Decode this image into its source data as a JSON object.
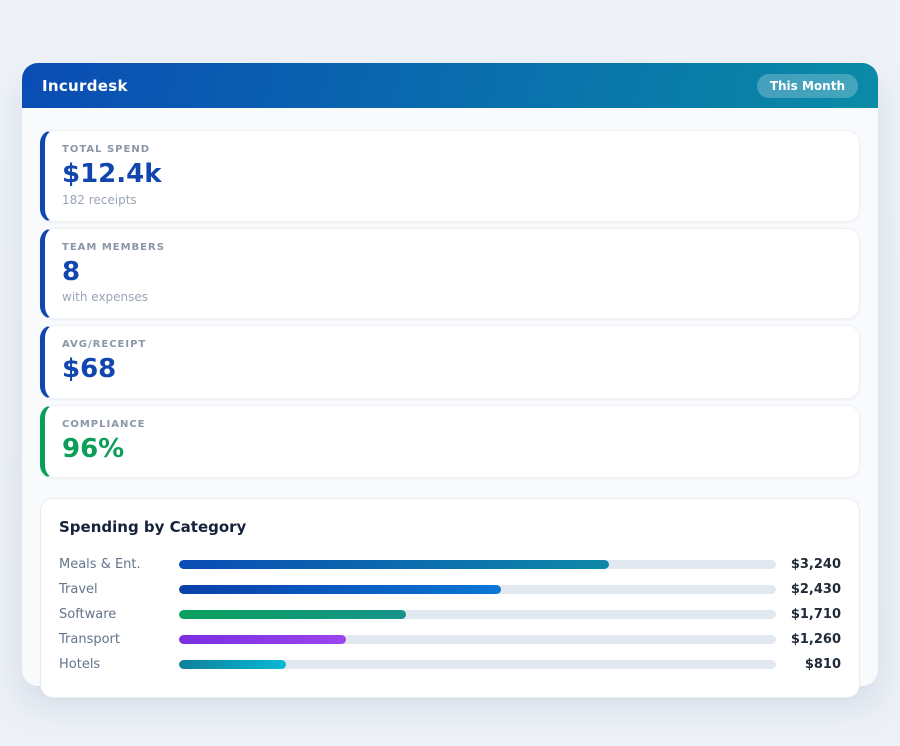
{
  "app": {
    "title": "Incurdesk",
    "period_badge": "This Month"
  },
  "theme": {
    "page_background": "#edf1f7",
    "panel_background": "#f8fafc",
    "header_gradient_from": "#0a4cb4",
    "header_gradient_to": "#0a8ba6",
    "stat_blue": "#1146ae",
    "stat_green": "#0a9e58",
    "bar_track": "#e2e8f0",
    "value_text": "#1f2937",
    "label_text": "#64748b"
  },
  "stats": [
    {
      "label": "TOTAL SPEND",
      "value": "$12.4k",
      "sub": "182 receipts",
      "accent": "#1146ae"
    },
    {
      "label": "TEAM MEMBERS",
      "value": "8",
      "sub": "with expenses",
      "accent": "#1146ae"
    },
    {
      "label": "AVG/RECEIPT",
      "value": "$68",
      "sub": "",
      "accent": "#1146ae"
    },
    {
      "label": "COMPLIANCE",
      "value": "96%",
      "sub": "",
      "accent": "#0a9e58"
    }
  ],
  "chart_data": {
    "type": "bar",
    "orientation": "horizontal",
    "title": "Spending by Category",
    "categories": [
      "Meals & Ent.",
      "Travel",
      "Software",
      "Transport",
      "Hotels"
    ],
    "values": [
      3240,
      2430,
      1710,
      1260,
      810
    ],
    "value_labels": [
      "$3,240",
      "$2,430",
      "$1,710",
      "$1,260",
      "$810"
    ],
    "scale_max": 4500,
    "xlabel": "",
    "ylabel": "",
    "grid": false,
    "legend": false,
    "gradients": [
      [
        "#0a4cb4",
        "#0e88a8"
      ],
      [
        "#0a3fa8",
        "#0b77d6"
      ],
      [
        "#0aa05c",
        "#16948a"
      ],
      [
        "#7a2ee0",
        "#9b45ee"
      ],
      [
        "#0f7f9b",
        "#06b9d5"
      ]
    ]
  }
}
